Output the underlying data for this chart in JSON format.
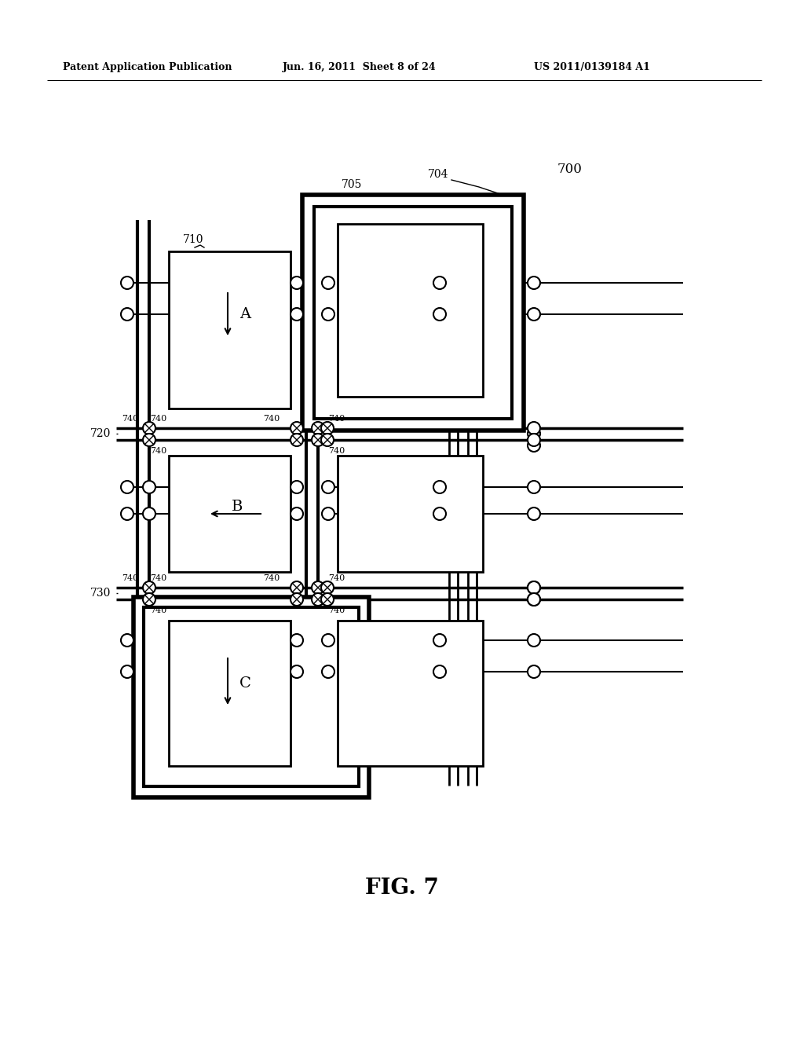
{
  "bg_color": "#ffffff",
  "header_left": "Patent Application Publication",
  "header_mid": "Jun. 16, 2011  Sheet 8 of 24",
  "header_right": "US 2011/0139184 A1",
  "fig_label": "FIG. 7",
  "ref_700": "700",
  "ref_704": "704",
  "ref_705": "705",
  "ref_710": "710",
  "ref_720": "720",
  "ref_730": "730",
  "ref_740": "740"
}
